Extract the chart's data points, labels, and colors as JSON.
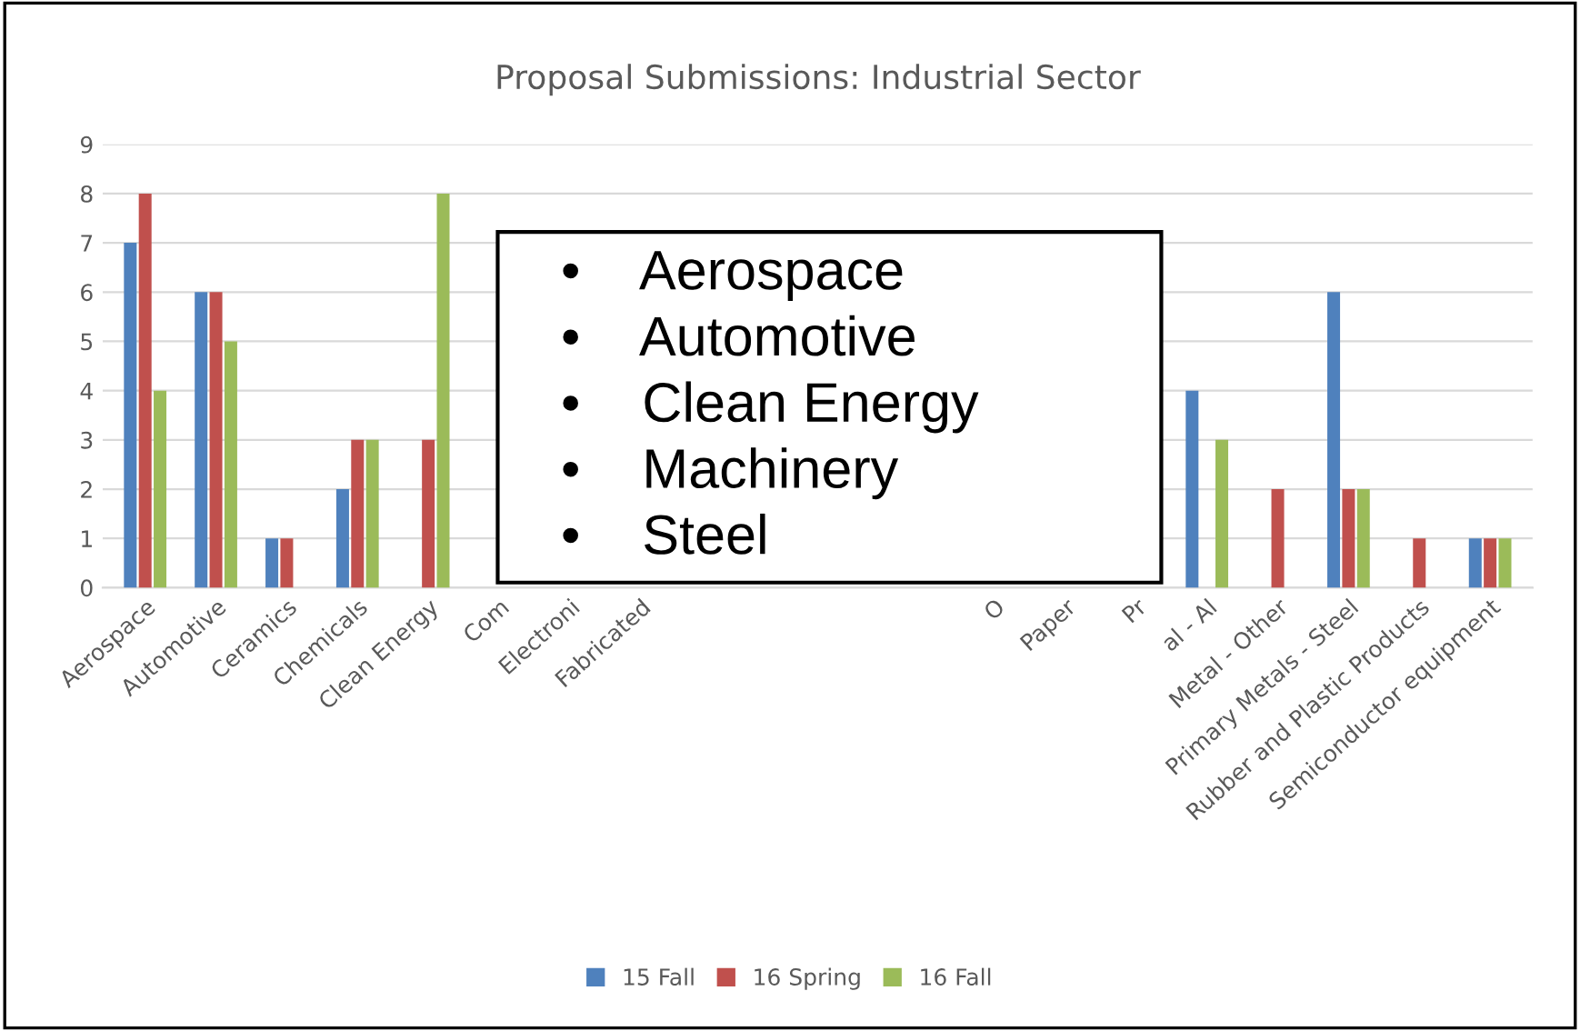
{
  "chart_data": {
    "type": "bar",
    "title": "Proposal Submissions: Industrial Sector",
    "categories": [
      "Aerospace",
      "Automotive",
      "Ceramics",
      "Chemicals",
      "Clean Energy",
      "Com",
      "Electroni",
      "Fabricated",
      null,
      null,
      null,
      null,
      "O",
      "Paper",
      "Pr",
      "al - Al",
      "Metal - Other",
      "Primary Metals - Steel",
      "Rubber and Plastic Products",
      "Semiconductor equipment"
    ],
    "series": [
      {
        "name": "15 Fall",
        "color": "#4f81bd",
        "values": [
          7,
          6,
          1,
          2,
          null,
          null,
          null,
          null,
          null,
          null,
          null,
          null,
          null,
          null,
          null,
          4,
          0,
          6,
          0,
          1
        ]
      },
      {
        "name": "16 Spring",
        "color": "#c0504d",
        "values": [
          8,
          6,
          1,
          3,
          3,
          null,
          null,
          null,
          null,
          null,
          null,
          null,
          null,
          null,
          null,
          0,
          2,
          2,
          1,
          1
        ]
      },
      {
        "name": "16 Fall",
        "color": "#9bbb59",
        "values": [
          4,
          5,
          0,
          3,
          8,
          null,
          null,
          null,
          null,
          null,
          null,
          null,
          null,
          null,
          null,
          3,
          0,
          2,
          0,
          1
        ]
      }
    ],
    "ylim": [
      0,
      9
    ],
    "yticks": [
      0,
      1,
      2,
      3,
      4,
      5,
      6,
      7,
      8,
      9
    ],
    "grid": "y",
    "legend": "bottom",
    "annotations": [
      "•    Aerospace",
      "•    Automotive",
      "•    Clean Energy",
      "•    Machinery",
      "•    Steel"
    ]
  }
}
